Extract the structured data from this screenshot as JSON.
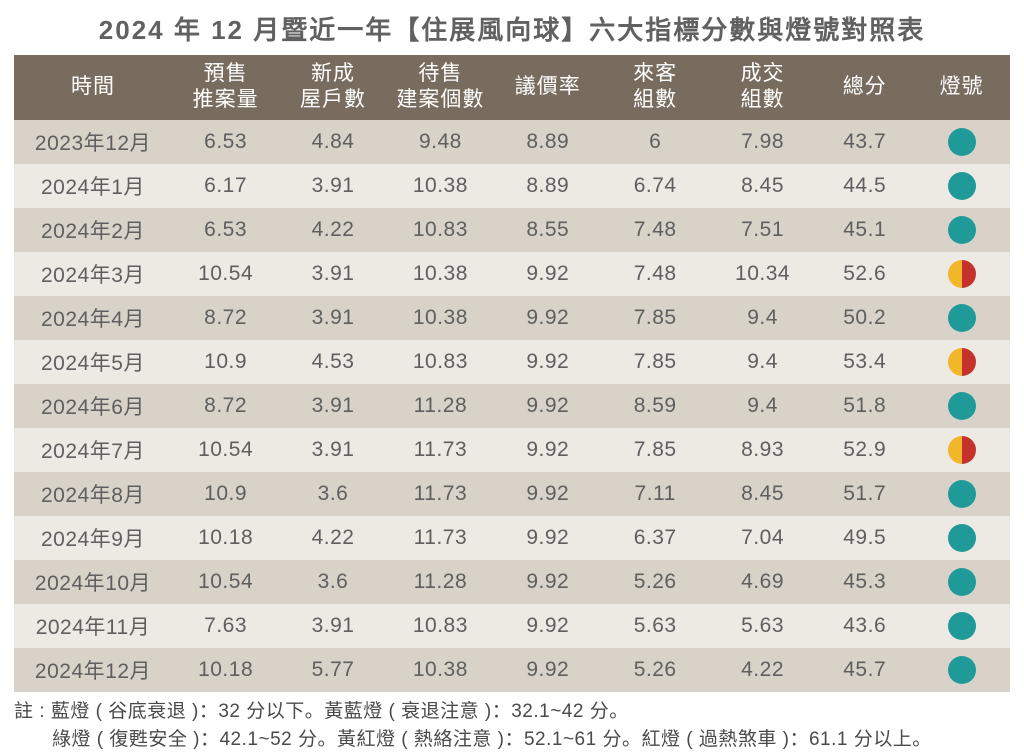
{
  "title": "2024 年 12 月暨近一年【住展風向球】六大指標分數與燈號對照表",
  "columns": [
    "時間",
    "預售\n推案量",
    "新成\n屋戶數",
    "待售\n建案個數",
    "議價率",
    "來客\n組數",
    "成交\n組數",
    "總分",
    "燈號"
  ],
  "light_colors": {
    "green": "#1f9a99",
    "yellow": "#f1b62a",
    "red": "#c6312e"
  },
  "rows": [
    {
      "time": "2023年12月",
      "v": [
        "6.53",
        "4.84",
        "9.48",
        "8.89",
        "6",
        "7.98"
      ],
      "total": "43.7",
      "light": {
        "type": "solid",
        "c": "green"
      }
    },
    {
      "time": "2024年1月",
      "v": [
        "6.17",
        "3.91",
        "10.38",
        "8.89",
        "6.74",
        "8.45"
      ],
      "total": "44.5",
      "light": {
        "type": "solid",
        "c": "green"
      }
    },
    {
      "time": "2024年2月",
      "v": [
        "6.53",
        "4.22",
        "10.83",
        "8.55",
        "7.48",
        "7.51"
      ],
      "total": "45.1",
      "light": {
        "type": "solid",
        "c": "green"
      }
    },
    {
      "time": "2024年3月",
      "v": [
        "10.54",
        "3.91",
        "10.38",
        "9.92",
        "7.48",
        "10.34"
      ],
      "total": "52.6",
      "light": {
        "type": "split",
        "l": "yellow",
        "r": "red"
      }
    },
    {
      "time": "2024年4月",
      "v": [
        "8.72",
        "3.91",
        "10.38",
        "9.92",
        "7.85",
        "9.4"
      ],
      "total": "50.2",
      "light": {
        "type": "solid",
        "c": "green"
      }
    },
    {
      "time": "2024年5月",
      "v": [
        "10.9",
        "4.53",
        "10.83",
        "9.92",
        "7.85",
        "9.4"
      ],
      "total": "53.4",
      "light": {
        "type": "split",
        "l": "yellow",
        "r": "red"
      }
    },
    {
      "time": "2024年6月",
      "v": [
        "8.72",
        "3.91",
        "11.28",
        "9.92",
        "8.59",
        "9.4"
      ],
      "total": "51.8",
      "light": {
        "type": "solid",
        "c": "green"
      }
    },
    {
      "time": "2024年7月",
      "v": [
        "10.54",
        "3.91",
        "11.73",
        "9.92",
        "7.85",
        "8.93"
      ],
      "total": "52.9",
      "light": {
        "type": "split",
        "l": "yellow",
        "r": "red"
      }
    },
    {
      "time": "2024年8月",
      "v": [
        "10.9",
        "3.6",
        "11.73",
        "9.92",
        "7.11",
        "8.45"
      ],
      "total": "51.7",
      "light": {
        "type": "solid",
        "c": "green"
      }
    },
    {
      "time": "2024年9月",
      "v": [
        "10.18",
        "4.22",
        "11.73",
        "9.92",
        "6.37",
        "7.04"
      ],
      "total": "49.5",
      "light": {
        "type": "solid",
        "c": "green"
      }
    },
    {
      "time": "2024年10月",
      "v": [
        "10.54",
        "3.6",
        "11.28",
        "9.92",
        "5.26",
        "4.69"
      ],
      "total": "45.3",
      "light": {
        "type": "solid",
        "c": "green"
      }
    },
    {
      "time": "2024年11月",
      "v": [
        "7.63",
        "3.91",
        "10.83",
        "9.92",
        "5.63",
        "5.63"
      ],
      "total": "43.6",
      "light": {
        "type": "solid",
        "c": "green"
      }
    },
    {
      "time": "2024年12月",
      "v": [
        "10.18",
        "5.77",
        "10.38",
        "9.92",
        "5.26",
        "4.22"
      ],
      "total": "45.7",
      "light": {
        "type": "solid",
        "c": "green"
      }
    }
  ],
  "footnote": {
    "line1": "註 : 藍燈 ( 谷底衰退 )：32 分以下。黃藍燈 ( 衰退注意 )：32.1~42 分。",
    "line2": "綠燈 ( 復甦安全 )：42.1~52 分。黃紅燈 ( 熱絡注意 )：52.1~61 分。紅燈 ( 過熱煞車 )：61.1 分以上。"
  },
  "style": {
    "header_bg": "#786c5f",
    "header_fg": "#ffffff",
    "row_odd_bg": "#d8d2c9",
    "row_even_bg": "#ede9e3",
    "title_color": "#616161",
    "cell_color": "#5f5f5f",
    "title_fontsize": 26,
    "header_fontsize": 21,
    "cell_fontsize": 21,
    "footnote_fontsize": 19
  }
}
